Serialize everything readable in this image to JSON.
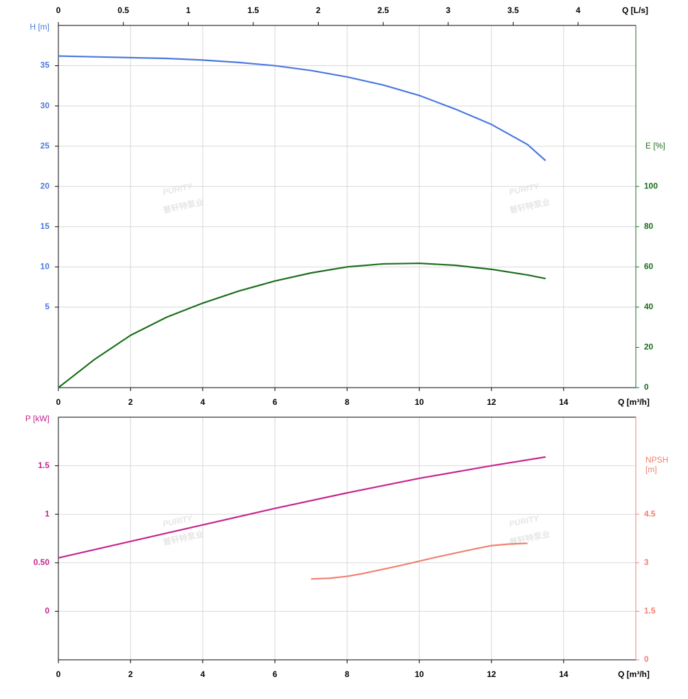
{
  "watermark": [
    "PURITY",
    "普轩特泵业"
  ],
  "chart_data": [
    {
      "type": "line",
      "xlabel": "Q [m³/h]",
      "x2label": "Q [L/s]",
      "ylabel": "H [m]",
      "y2label": "E [%]",
      "xlim": [
        0,
        16
      ],
      "xticks": [
        0,
        2,
        4,
        6,
        8,
        10,
        12,
        14
      ],
      "x2lim": [
        0,
        4.444
      ],
      "x2ticks": [
        0,
        0.5,
        1,
        1.5,
        2,
        2.5,
        3,
        3.5,
        4
      ],
      "ylim": [
        -5,
        40
      ],
      "yticks": [
        5,
        10,
        15,
        20,
        25,
        30,
        35
      ],
      "ycolor": "#4a78e0",
      "y2lim": [
        0,
        180
      ],
      "y2ticks": [
        0,
        20,
        40,
        60,
        80,
        100
      ],
      "y2color": "#1a6e1a",
      "grid": true,
      "series": [
        {
          "color": "#4a78e0",
          "x": [
            0,
            1,
            2,
            3,
            4,
            5,
            6,
            7,
            8,
            9,
            10,
            11,
            12,
            13,
            13.5
          ],
          "values": [
            36.2,
            36.1,
            36.0,
            35.9,
            35.7,
            35.4,
            35.0,
            34.4,
            33.6,
            32.6,
            31.3,
            29.6,
            27.7,
            25.2,
            23.2
          ]
        },
        {
          "color": "#1a6e1a",
          "axis": "y2",
          "x": [
            0,
            1,
            2,
            3,
            4,
            5,
            6,
            7,
            8,
            9,
            10,
            11,
            12,
            13,
            13.5
          ],
          "values": [
            0,
            14,
            26,
            35,
            42,
            48,
            53,
            57,
            60,
            61.5,
            61.8,
            60.8,
            58.8,
            56,
            54.2
          ]
        }
      ]
    },
    {
      "type": "line",
      "xlabel": "Q [m³/h]",
      "ylabel": "P [kW]",
      "y2label": "NPSH [m]",
      "xlim": [
        0,
        16
      ],
      "xticks": [
        0,
        2,
        4,
        6,
        8,
        10,
        12,
        14
      ],
      "ylim": [
        -0.5,
        2
      ],
      "yticks": [
        0,
        {
          "value": 0.5,
          "label": "0.50"
        },
        1,
        1.5
      ],
      "ycolor": "#c8238f",
      "y2lim": [
        0,
        7.5
      ],
      "y2ticks": [
        0,
        1.5,
        3,
        4.5
      ],
      "y2color": "#f08070",
      "grid": true,
      "series": [
        {
          "color": "#c8238f",
          "x": [
            0,
            2,
            4,
            6,
            8,
            10,
            12,
            13.5
          ],
          "values": [
            0.55,
            0.72,
            0.89,
            1.06,
            1.22,
            1.37,
            1.5,
            1.59
          ]
        },
        {
          "color": "#f08070",
          "axis": "y2",
          "x": [
            7,
            7.5,
            8,
            8.5,
            9,
            9.5,
            10,
            10.5,
            11,
            11.5,
            12,
            12.5,
            13
          ],
          "values": [
            2.5,
            2.52,
            2.58,
            2.68,
            2.8,
            2.92,
            3.05,
            3.18,
            3.3,
            3.42,
            3.53,
            3.58,
            3.6
          ]
        }
      ]
    }
  ]
}
